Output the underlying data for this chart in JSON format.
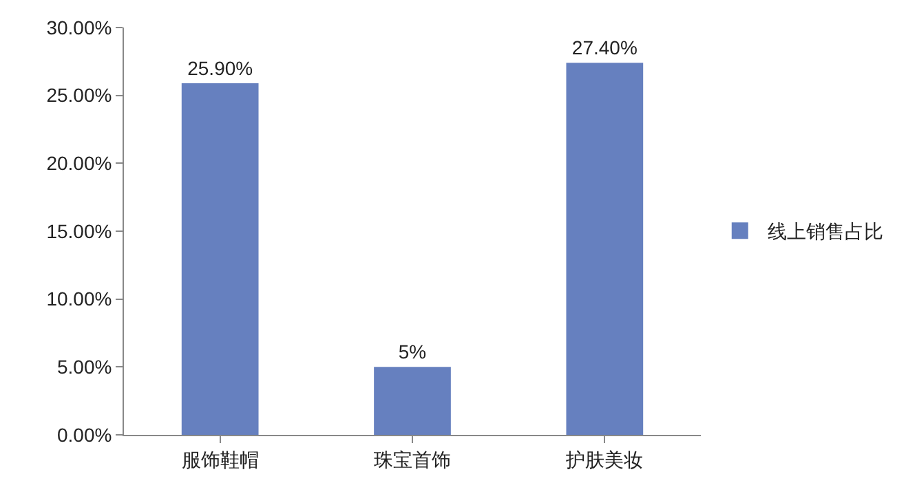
{
  "chart_data": {
    "type": "bar",
    "categories": [
      "服饰鞋帽",
      "珠宝首饰",
      "护肤美妆"
    ],
    "series": [
      {
        "name": "线上销售占比",
        "color": "#6680bf",
        "values": [
          25.9,
          5,
          27.4
        ],
        "value_labels": [
          "25.90%",
          "5%",
          "27.40%"
        ]
      }
    ],
    "ylim": [
      0,
      30
    ],
    "yticks": [
      {
        "value": 0,
        "label": "0.00%"
      },
      {
        "value": 5,
        "label": "5.00%"
      },
      {
        "value": 10,
        "label": "10.00%"
      },
      {
        "value": 15,
        "label": "15.00%"
      },
      {
        "value": 20,
        "label": "20.00%"
      },
      {
        "value": 25,
        "label": "25.00%"
      },
      {
        "value": 30,
        "label": "30.00%"
      }
    ],
    "grid": false,
    "legend": "right"
  }
}
